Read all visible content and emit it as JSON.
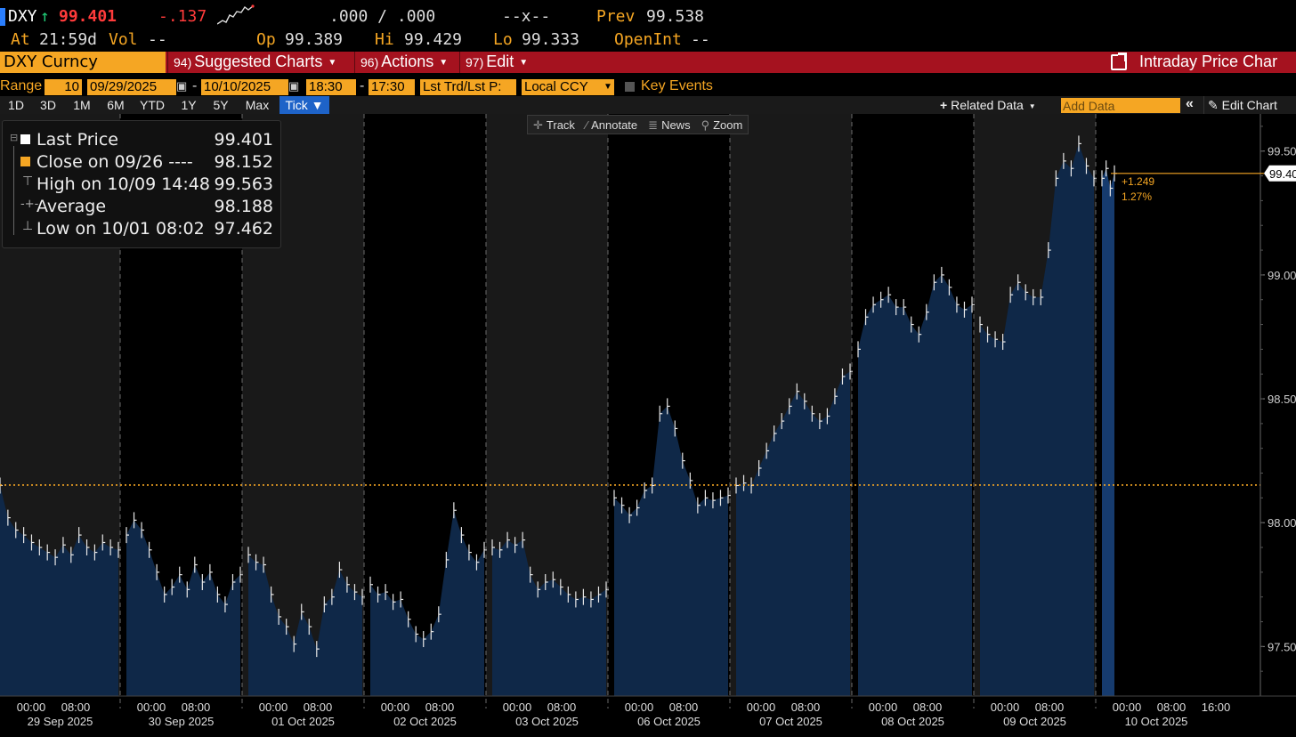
{
  "quote": {
    "ticker": "DXY",
    "arrow": "↑",
    "last": "99.401",
    "change": "-.137",
    "bidask": ".000 / .000",
    "size": "--x--",
    "prev_label": "Prev",
    "prev": "99.538",
    "time_label": "At",
    "time": "21:59d",
    "vol_label": "Vol",
    "vol": "--",
    "open_label": "Op",
    "open": "99.389",
    "high_label": "Hi",
    "high": "99.429",
    "low_label": "Lo",
    "low": "99.333",
    "oi_label": "OpenInt",
    "oi": "--"
  },
  "menubar": {
    "security": "DXY Curncy",
    "suggested_num": "94)",
    "suggested": "Suggested Charts",
    "actions_num": "96)",
    "actions": "Actions",
    "edit_num": "97)",
    "edit": "Edit",
    "title": "Intraday Price Char"
  },
  "range": {
    "label": "Range",
    "days": "10",
    "start_date": "09/29/2025",
    "end_date": "10/10/2025",
    "start_time": "18:30",
    "end_time": "17:30",
    "price_type": "Lst Trd/Lst P:",
    "currency": "Local CCY",
    "key_events": "Key Events"
  },
  "timeframes": [
    "1D",
    "3D",
    "1M",
    "6M",
    "YTD",
    "1Y",
    "5Y",
    "Max",
    "Tick ▼"
  ],
  "toolbar": {
    "related": "Related Data",
    "add_data_placeholder": "Add Data",
    "edit_chart": "Edit Chart"
  },
  "tools": [
    "Track",
    "Annotate",
    "News",
    "Zoom"
  ],
  "legend": [
    {
      "label": "Last Price",
      "value": "99.401"
    },
    {
      "label": "Close on 09/26 ----",
      "value": "98.152"
    },
    {
      "label": "High on 10/09 14:48",
      "value": "99.563"
    },
    {
      "label": "Average",
      "value": "98.188"
    },
    {
      "label": "Low on 10/01 08:02",
      "value": "97.462"
    }
  ],
  "colors": {
    "accent": "#f5a623",
    "menu": "#a5121f",
    "area": "#0f2848",
    "area_last": "#163b6e",
    "down": "#ff3b3b",
    "up": "#21d07a"
  },
  "chart_data": {
    "type": "area",
    "ylim": [
      97.3,
      99.65
    ],
    "y_ticks": [
      "99.50",
      "99.00",
      "98.50",
      "98.00",
      "97.50"
    ],
    "reference_line": 98.152,
    "last_price_label": "99.40",
    "change_abs": "+1.249",
    "change_pct": "1.27%",
    "x_time_labels": [
      "00:00",
      "08:00",
      "16:00"
    ],
    "sessions": [
      {
        "date": "29 Sep 2025",
        "values": [
          98.15,
          98.02,
          97.97,
          97.95,
          97.92,
          97.9,
          97.88,
          97.86,
          97.91,
          97.87,
          97.95,
          97.9,
          97.88,
          97.92,
          97.9,
          97.89
        ]
      },
      {
        "date": "30 Sep 2025",
        "values": [
          97.95,
          98.01,
          97.97,
          97.89,
          97.8,
          97.71,
          97.74,
          97.79,
          97.73,
          97.83,
          97.76,
          97.8,
          97.71,
          97.67,
          97.76,
          97.79
        ]
      },
      {
        "date": "01 Oct 2025",
        "values": [
          97.87,
          97.84,
          97.83,
          97.71,
          97.62,
          97.58,
          97.51,
          97.64,
          97.58,
          97.49,
          97.67,
          97.7,
          97.81,
          97.75,
          97.72,
          97.7
        ]
      },
      {
        "date": "02 Oct 2025",
        "values": [
          97.75,
          97.71,
          97.72,
          97.68,
          97.69,
          97.61,
          97.55,
          97.53,
          97.56,
          97.63,
          97.85,
          98.05,
          97.95,
          97.88,
          97.84,
          97.89
        ]
      },
      {
        "date": "03 Oct 2025",
        "values": [
          97.9,
          97.89,
          97.93,
          97.91,
          97.93,
          97.79,
          97.73,
          97.76,
          97.77,
          97.74,
          97.71,
          97.69,
          97.7,
          97.69,
          97.71,
          97.73
        ]
      },
      {
        "date": "06 Oct 2025",
        "values": [
          98.1,
          98.07,
          98.03,
          98.06,
          98.13,
          98.15,
          98.44,
          98.47,
          98.38,
          98.25,
          98.17,
          98.07,
          98.1,
          98.09,
          98.1,
          98.11
        ]
      },
      {
        "date": "07 Oct 2025",
        "values": [
          98.15,
          98.16,
          98.15,
          98.22,
          98.29,
          98.36,
          98.41,
          98.47,
          98.53,
          98.49,
          98.44,
          98.41,
          98.43,
          98.51,
          98.59,
          98.61
        ]
      },
      {
        "date": "08 Oct 2025",
        "values": [
          98.7,
          98.83,
          98.88,
          98.9,
          98.92,
          98.87,
          98.87,
          98.8,
          98.76,
          98.85,
          98.97,
          99.0,
          98.95,
          98.88,
          98.86,
          98.88
        ]
      },
      {
        "date": "09 Oct 2025",
        "values": [
          98.8,
          98.76,
          98.74,
          98.73,
          98.92,
          98.97,
          98.93,
          98.91,
          98.91,
          99.1,
          99.39,
          99.46,
          99.43,
          99.53,
          99.44,
          99.39
        ]
      },
      {
        "date": "10 Oct 2025",
        "values": [
          99.39,
          99.43,
          99.35,
          99.41
        ]
      }
    ]
  }
}
